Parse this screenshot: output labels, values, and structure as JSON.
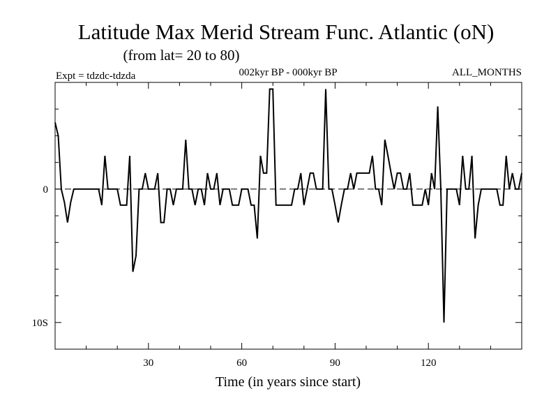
{
  "chart_data": {
    "type": "line",
    "title": "Latitude Max Merid Stream Func. Atlantic (oN)",
    "subtitle": "(from lat= 20 to 80)",
    "experiment": "Expt = tdzdc-tdzda",
    "period": "002kyr BP - 000kyr BP",
    "months": "ALL_MONTHS",
    "xlabel": "Time (in years since start)",
    "ylabel": "",
    "xlim": [
      0,
      150
    ],
    "ylim": [
      -12,
      8
    ],
    "xticks": [
      30,
      60,
      90,
      120
    ],
    "xtick_labels": [
      "30",
      "60",
      "90",
      "120"
    ],
    "yticks": [
      0,
      -10
    ],
    "ytick_labels": [
      "0",
      "10S"
    ],
    "reference_line": 0,
    "x": [
      0,
      1,
      2,
      3,
      4,
      5,
      6,
      7,
      8,
      9,
      10,
      11,
      12,
      13,
      14,
      15,
      16,
      17,
      18,
      19,
      20,
      21,
      22,
      23,
      24,
      25,
      26,
      27,
      28,
      29,
      30,
      31,
      32,
      33,
      34,
      35,
      36,
      37,
      38,
      39,
      40,
      41,
      42,
      43,
      44,
      45,
      46,
      47,
      48,
      49,
      50,
      51,
      52,
      53,
      54,
      55,
      56,
      57,
      58,
      59,
      60,
      61,
      62,
      63,
      64,
      65,
      66,
      67,
      68,
      69,
      70,
      71,
      72,
      73,
      74,
      75,
      76,
      77,
      78,
      79,
      80,
      81,
      82,
      83,
      84,
      85,
      86,
      87,
      88,
      89,
      90,
      91,
      92,
      93,
      94,
      95,
      96,
      97,
      98,
      99,
      100,
      101,
      102,
      103,
      104,
      105,
      106,
      107,
      108,
      109,
      110,
      111,
      112,
      113,
      114,
      115,
      116,
      117,
      118,
      119,
      120,
      121,
      122,
      123,
      124,
      125,
      126,
      127,
      128,
      129,
      130,
      131,
      132,
      133,
      134,
      135,
      136,
      137,
      138,
      139,
      140,
      141,
      142,
      143,
      144,
      145,
      146,
      147,
      148,
      149,
      150
    ],
    "series": [
      {
        "name": "tdzdc-tdzda",
        "values": [
          5,
          4,
          0,
          -1,
          -2.5,
          -1,
          0,
          0,
          0,
          0,
          0,
          0,
          0,
          0,
          0,
          -1.2,
          2.5,
          0,
          0,
          0,
          0,
          -1.2,
          -1.2,
          -1.2,
          2.5,
          -6.2,
          -5,
          0,
          0,
          1.2,
          0,
          0,
          0,
          1.2,
          -2.5,
          -2.5,
          0,
          0,
          -1.2,
          0,
          0,
          0,
          3.7,
          0,
          0,
          -1.2,
          0,
          0,
          -1.2,
          1.2,
          0,
          0,
          1.2,
          -1.2,
          0,
          0,
          0,
          -1.2,
          -1.2,
          -1.2,
          0,
          0,
          0,
          -1.2,
          -1.2,
          -3.7,
          2.5,
          1.2,
          1.2,
          7.5,
          7.5,
          -1.2,
          -1.2,
          -1.2,
          -1.2,
          -1.2,
          -1.2,
          0,
          0,
          1.2,
          -1.2,
          0,
          1.2,
          1.2,
          0,
          0,
          0,
          7.5,
          0,
          0,
          -1.2,
          -2.5,
          -1.2,
          0,
          0,
          1.2,
          0,
          1.2,
          1.2,
          1.2,
          1.2,
          1.2,
          2.5,
          0,
          0,
          -1.2,
          3.7,
          2.5,
          1.2,
          0,
          1.2,
          1.2,
          0,
          0,
          1.2,
          -1.2,
          -1.2,
          -1.2,
          -1.2,
          0,
          -1.2,
          1.2,
          0,
          6.2,
          0,
          -10,
          0,
          0,
          0,
          0,
          -1.2,
          2.5,
          0,
          0,
          2.5,
          -3.7,
          -1.2,
          0,
          0,
          0,
          0,
          0,
          0,
          -1.2,
          -1.2,
          2.5,
          0,
          1.2,
          0,
          0,
          1.2
        ]
      }
    ]
  }
}
